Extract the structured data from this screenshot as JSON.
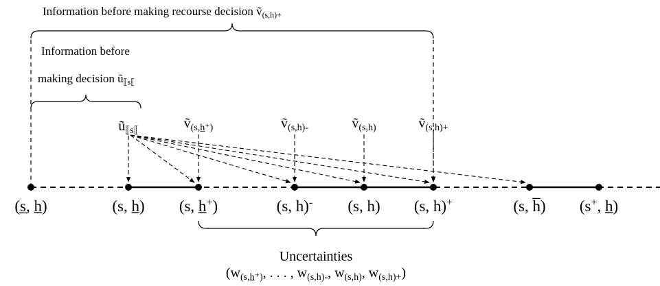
{
  "top_label": {
    "text": "Information before making recourse decision",
    "symbol": [
      {
        "t": "ṽ"
      },
      {
        "t": "(s,h)+",
        "sub": true
      }
    ]
  },
  "inner_label": {
    "line1": "Information before",
    "line2": "making decision",
    "symbol": [
      {
        "t": "ũ"
      },
      {
        "t": "⟦s⟦",
        "sub": true
      }
    ]
  },
  "decision_labels": [
    [
      {
        "t": "ũ"
      },
      {
        "t": "⟦s⟦",
        "sub": true
      }
    ],
    [
      {
        "t": "ṽ"
      },
      {
        "t": "(s,h̲⁺)",
        "sub": true
      }
    ],
    [
      {
        "t": "ṽ"
      },
      {
        "t": "(s,h)-",
        "sub": true
      }
    ],
    [
      {
        "t": "ṽ"
      },
      {
        "t": "(s,h)",
        "sub": true
      }
    ],
    [
      {
        "t": "ṽ"
      },
      {
        "t": "(s,h)+",
        "sub": true
      }
    ]
  ],
  "points": [
    [
      {
        "t": "(s̲, h̲)"
      }
    ],
    [
      {
        "t": "(s, h̲)"
      }
    ],
    [
      {
        "t": "(s, h̲"
      },
      {
        "t": "+",
        "sup": true
      },
      {
        "t": ")"
      }
    ],
    [
      {
        "t": "(s, h)"
      },
      {
        "t": "-",
        "sup": true
      }
    ],
    [
      {
        "t": "(s, h)"
      }
    ],
    [
      {
        "t": "(s, h)"
      },
      {
        "t": "+",
        "sup": true
      }
    ],
    [
      {
        "t": "(s, h̅)"
      }
    ],
    [
      {
        "t": "(s"
      },
      {
        "t": "+",
        "sup": true
      },
      {
        "t": ", h̲)"
      }
    ]
  ],
  "uncertainties": {
    "title": "Uncertainties",
    "tuple": [
      {
        "t": "(w"
      },
      {
        "t": "(s,h̲⁺)",
        "sub": true
      },
      {
        "t": ", . . . , w"
      },
      {
        "t": "(s,h)-",
        "sub": true
      },
      {
        "t": ", w"
      },
      {
        "t": "(s,h)",
        "sub": true
      },
      {
        "t": ", w"
      },
      {
        "t": "(s,h)+",
        "sub": true
      },
      {
        "t": ")"
      }
    ]
  }
}
